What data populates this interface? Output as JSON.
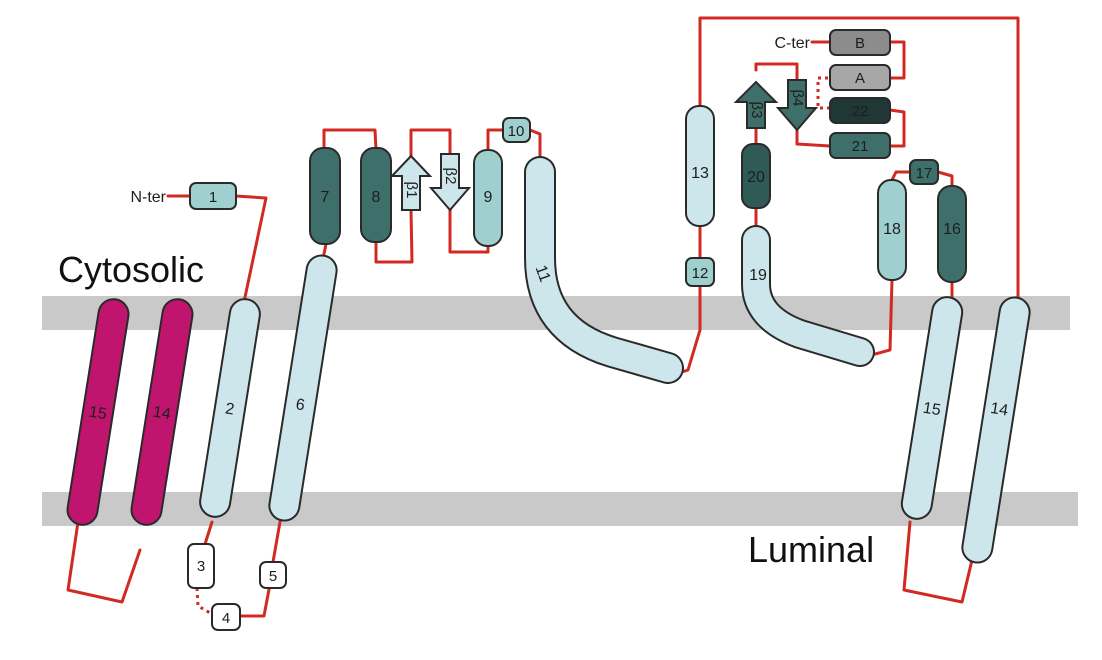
{
  "colors": {
    "membrane": "#c9c9c9",
    "loop": "#d12a23",
    "light": "#cde6ec",
    "medium": "#9fd0cf",
    "dark": "#3f6f6a",
    "darker": "#2f5a56",
    "magenta": "#c0156e",
    "grey_b": "#8c8c8c",
    "grey_a": "#a7a7a7"
  },
  "regions": {
    "cytosolic": "Cytosolic",
    "luminal": "Luminal"
  },
  "termini": {
    "n": "N-ter",
    "c": "C-ter"
  },
  "helices": {
    "h1": "1",
    "h2": "2",
    "h3": "3",
    "h4": "4",
    "h5": "5",
    "h6": "6",
    "h7": "7",
    "h8": "8",
    "h9": "9",
    "h10": "10",
    "h11": "11",
    "h12": "12",
    "h13": "13",
    "h14": "14",
    "h15": "15",
    "h16": "16",
    "h17": "17",
    "h18": "18",
    "h19": "19",
    "h20": "20",
    "h21": "21",
    "h22": "22",
    "hA": "A",
    "hB": "B",
    "m15": "15",
    "m14": "14"
  },
  "strands": {
    "s1": "β1",
    "s2": "β2",
    "s3": "β3",
    "s4": "β4"
  }
}
